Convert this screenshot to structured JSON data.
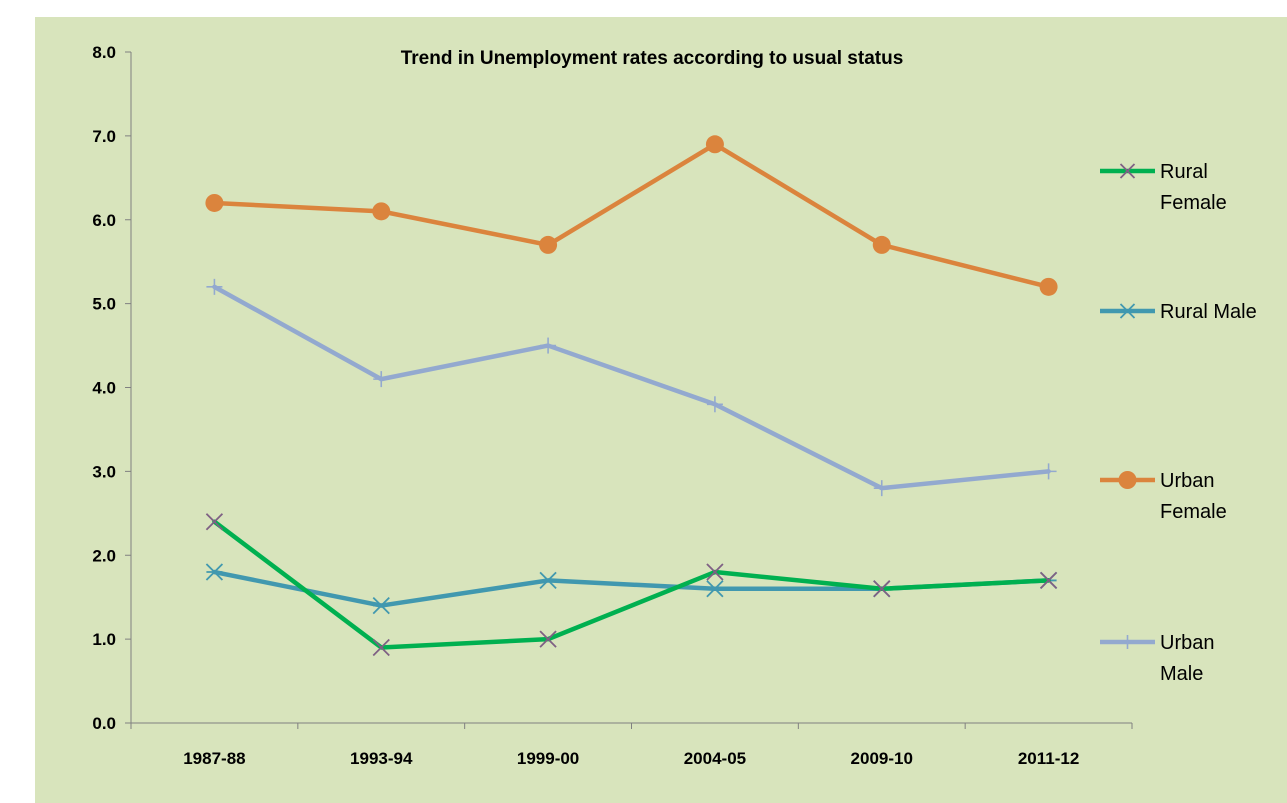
{
  "chart_data": {
    "type": "line",
    "title": "Trend in Unemployment rates according to usual status",
    "xlabel": "",
    "ylabel": "",
    "categories": [
      "1987-88",
      "1993-94",
      "1999-00",
      "2004-05",
      "2009-10",
      "2011-12"
    ],
    "ylim": [
      0,
      8
    ],
    "yticks": [
      "0.0",
      "1.0",
      "2.0",
      "3.0",
      "4.0",
      "5.0",
      "6.0",
      "7.0",
      "8.0"
    ],
    "grid": false,
    "legend_position": "right",
    "background_color": "#d8e4bc",
    "series": [
      {
        "name": "Rural Female",
        "legend_lines": [
          "Rural",
          "Female"
        ],
        "color": "#00b050",
        "marker": "x",
        "marker_color": "#7f6084",
        "values": [
          2.4,
          0.9,
          1.0,
          1.8,
          1.6,
          1.7
        ]
      },
      {
        "name": "Rural Male",
        "legend_lines": [
          "Rural Male"
        ],
        "color": "#4198af",
        "marker": "star",
        "marker_color": "#4198af",
        "values": [
          1.8,
          1.4,
          1.7,
          1.6,
          1.6,
          1.7
        ]
      },
      {
        "name": "Urban Female",
        "legend_lines": [
          "Urban",
          "Female"
        ],
        "color": "#db843d",
        "marker": "circle",
        "marker_color": "#db843d",
        "values": [
          6.2,
          6.1,
          5.7,
          6.9,
          5.7,
          5.2
        ]
      },
      {
        "name": "Urban Male",
        "legend_lines": [
          "Urban",
          "Male"
        ],
        "color": "#93a9cf",
        "marker": "plus",
        "marker_color": "#93a9cf",
        "values": [
          5.2,
          4.1,
          4.5,
          3.8,
          2.8,
          3.0
        ]
      }
    ]
  }
}
